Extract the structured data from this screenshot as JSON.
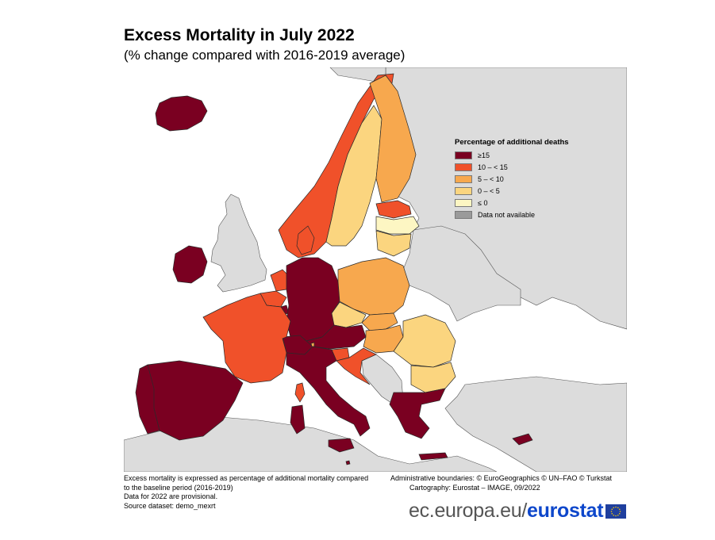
{
  "title": "Excess Mortality in July 2022",
  "subtitle": "(% change compared with 2016-2019 average)",
  "legend": {
    "title": "Percentage of additional deaths",
    "items": [
      {
        "label": "≥15",
        "color": "#7a0021"
      },
      {
        "label": "10 – < 15",
        "color": "#f0512a"
      },
      {
        "label": "5 – < 10",
        "color": "#f7a84e"
      },
      {
        "label": "0 – < 5",
        "color": "#fbd57f"
      },
      {
        "label": "≤ 0",
        "color": "#fdf6c3"
      },
      {
        "label": "Data not available",
        "color": "#9a9a9a"
      }
    ]
  },
  "colors": {
    "sea": "#ffffff",
    "non_eu_land": "#dcdcdc",
    "border": "#333333"
  },
  "notes": {
    "line1": "Excess mortality is expressed as percentage of additional mortality compared",
    "line2": "to the baseline period (2016-2019)",
    "line3": "Data for 2022 are provisional.",
    "line4": "Source dataset: demo_mexrt"
  },
  "credits": {
    "line1": "Administrative boundaries: © EuroGeographics © UN–FAO © Turkstat",
    "line2": "Cartography: Eurostat – IMAGE, 09/2022"
  },
  "brand": {
    "url": "ec.europa.eu/",
    "name": "eurostat"
  },
  "map_data": {
    "class_legend_index": {
      "Iceland": 0,
      "Ireland": 0,
      "Germany": 0,
      "Austria": 0,
      "Switzerland": 0,
      "Italy": 0,
      "Spain": 0,
      "Portugal": 0,
      "Greece": 0,
      "Cyprus": 0,
      "Malta": 0,
      "Luxembourg": 0,
      "France": 1,
      "Norway": 1,
      "Denmark": 1,
      "Belgium": 1,
      "Netherlands": 1,
      "Estonia": 1,
      "Slovenia": 1,
      "Croatia": 1,
      "Finland": 2,
      "Poland": 2,
      "Hungary": 2,
      "Slovakia": 2,
      "Liechtenstein": 2,
      "Sweden": 3,
      "Lithuania": 3,
      "Czechia": 3,
      "Romania": 3,
      "Bulgaria": 3,
      "Latvia": 4
    }
  }
}
